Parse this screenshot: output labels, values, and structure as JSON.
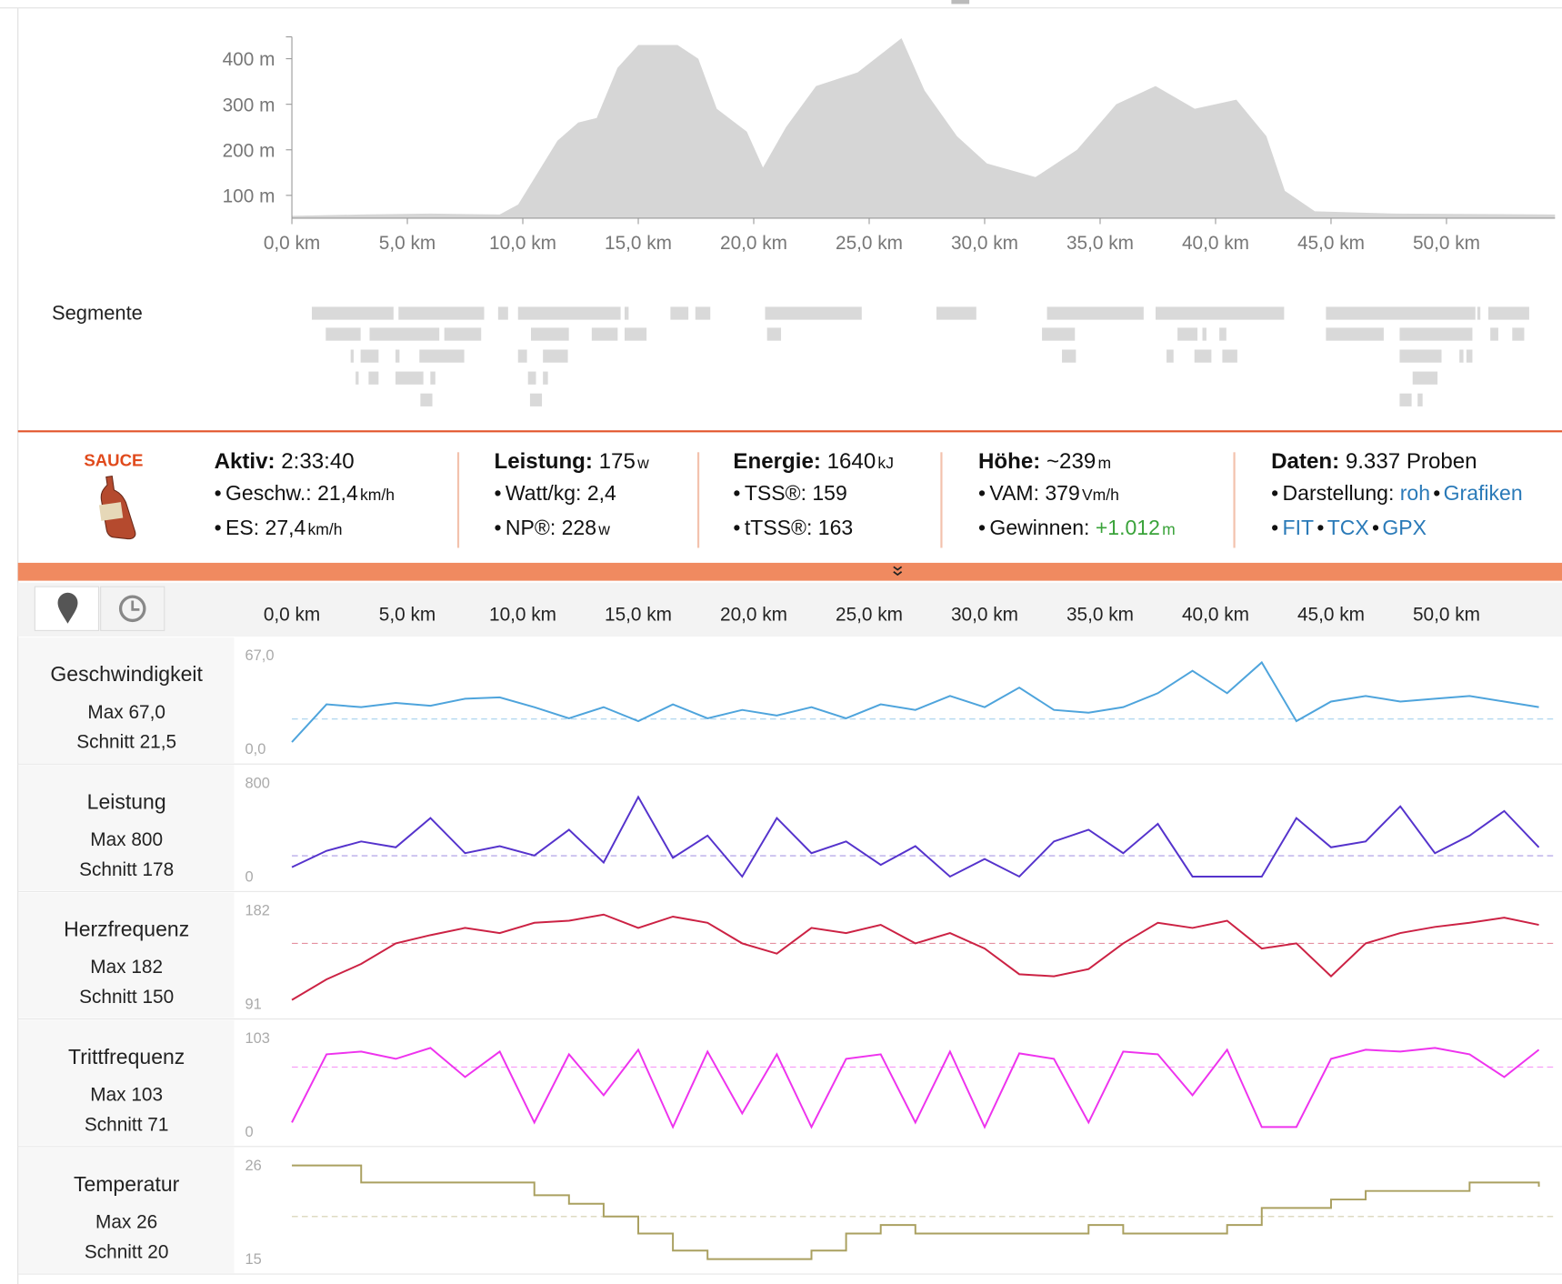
{
  "elevation": {
    "type": "area",
    "color": "#d6d6d6",
    "x": [
      0,
      3,
      6,
      9,
      9.8,
      11.5,
      12.4,
      13.2,
      14.1,
      15,
      16.7,
      17.6,
      18.4,
      19.7,
      20.4,
      21.4,
      22.7,
      24.5,
      26.4,
      27.4,
      28.8,
      30.1,
      32.2,
      34,
      35.7,
      37.4,
      39.1,
      40.9,
      42.2,
      43,
      44.3,
      47.8,
      54.7
    ],
    "values": [
      55,
      58,
      60,
      58,
      80,
      220,
      260,
      270,
      380,
      430,
      430,
      400,
      290,
      240,
      161,
      250,
      340,
      370,
      445,
      330,
      230,
      170,
      140,
      200,
      300,
      340,
      290,
      310,
      230,
      110,
      65,
      60,
      58
    ],
    "xlim": [
      0,
      54.7
    ],
    "ylim": [
      50,
      448
    ],
    "xticks": [
      {
        "value": 0,
        "label": "0,0 km"
      },
      {
        "value": 5,
        "label": "5,0 km"
      },
      {
        "value": 10,
        "label": "10,0 km"
      },
      {
        "value": 15,
        "label": "15,0 km"
      },
      {
        "value": 20,
        "label": "20,0 km"
      },
      {
        "value": 25,
        "label": "25,0 km"
      },
      {
        "value": 30,
        "label": "30,0 km"
      },
      {
        "value": 35,
        "label": "35,0 km"
      },
      {
        "value": 40,
        "label": "40,0 km"
      },
      {
        "value": 45,
        "label": "45,0 km"
      },
      {
        "value": 50,
        "label": "50,0 km"
      }
    ],
    "yticks": [
      {
        "value": 100,
        "label": "100 m"
      },
      {
        "value": 200,
        "label": "200 m"
      },
      {
        "value": 300,
        "label": "300 m"
      },
      {
        "value": 400,
        "label": "400 m"
      }
    ]
  },
  "segments_title": "Segmente",
  "summary": {
    "logo": "SAUCE",
    "columns": [
      {
        "head": {
          "label": "Aktiv:",
          "value": "2:33:40"
        },
        "items": [
          {
            "label": "Geschw.:",
            "value": "21,4",
            "unit": "km/h"
          },
          {
            "label": "ES:",
            "value": "27,4",
            "unit": "km/h"
          }
        ]
      },
      {
        "head": {
          "label": "Leistung:",
          "value": "175",
          "unit": "w"
        },
        "items": [
          {
            "label": "Watt/kg:",
            "value": "2,4"
          },
          {
            "label": "NP®:",
            "value": "228",
            "unit": "w"
          }
        ]
      },
      {
        "head": {
          "label": "Energie:",
          "value": "1640",
          "unit": "kJ"
        },
        "items": [
          {
            "label": "TSS®:",
            "value": "159"
          },
          {
            "label": "tTSS®:",
            "value": "163"
          }
        ]
      },
      {
        "head": {
          "label": "Höhe:",
          "value": "~239",
          "unit": "m"
        },
        "items": [
          {
            "label": "VAM:",
            "value": "379",
            "unit": "Vm/h"
          },
          {
            "label": "Gewinnen:",
            "value": "+1.012",
            "unit": "m",
            "color": "#3aa33a"
          }
        ]
      },
      {
        "head": {
          "label": "Daten:",
          "value": "9.337 Proben"
        },
        "items": [
          {
            "label": "Darstellung:",
            "links": [
              "roh",
              "Grafiken"
            ]
          },
          {
            "links": [
              "FIT",
              "TCX",
              "GPX"
            ]
          }
        ]
      }
    ]
  },
  "stream_axis": {
    "xlim": [
      0,
      54.7
    ],
    "xticks": [
      {
        "value": 0,
        "label": "0,0 km"
      },
      {
        "value": 5,
        "label": "5,0 km"
      },
      {
        "value": 10,
        "label": "10,0 km"
      },
      {
        "value": 15,
        "label": "15,0 km"
      },
      {
        "value": 20,
        "label": "20,0 km"
      },
      {
        "value": 25,
        "label": "25,0 km"
      },
      {
        "value": 30,
        "label": "30,0 km"
      },
      {
        "value": 35,
        "label": "35,0 km"
      },
      {
        "value": 40,
        "label": "40,0 km"
      },
      {
        "value": 45,
        "label": "45,0 km"
      },
      {
        "value": 50,
        "label": "50,0 km"
      }
    ],
    "x": [
      0,
      1.5,
      3,
      4.5,
      6,
      7.5,
      9,
      10.5,
      12,
      13.5,
      15,
      16.5,
      18,
      19.5,
      21,
      22.5,
      24,
      25.5,
      27,
      28.5,
      30,
      31.5,
      33,
      34.5,
      36,
      37.5,
      39,
      40.5,
      42,
      43.5,
      45,
      46.5,
      48,
      49.5,
      51,
      52.5,
      54
    ]
  },
  "streams": [
    {
      "type": "line",
      "name": "Geschwindigkeit",
      "max_label": "Max 67,0",
      "avg_label": "Schnitt 21,5",
      "avg": 21.5,
      "color": "#4ea4dc",
      "ylim": [
        0,
        67
      ],
      "yticks": [
        {
          "value": 0,
          "label": "0,0"
        },
        {
          "value": 67,
          "label": "67,0"
        }
      ],
      "values": [
        5,
        32,
        30,
        33,
        31,
        36,
        37,
        30,
        22,
        30,
        20,
        32,
        22,
        28,
        24,
        30,
        22,
        32,
        28,
        38,
        30,
        44,
        28,
        26,
        30,
        40,
        56,
        40,
        62,
        20,
        34,
        38,
        34,
        36,
        38,
        34,
        30
      ]
    },
    {
      "type": "line",
      "name": "Leistung",
      "max_label": "Max 800",
      "avg_label": "Schnitt 178",
      "avg": 178,
      "color": "#5533cc",
      "ylim": [
        0,
        800
      ],
      "yticks": [
        0,
        800
      ],
      "values": [
        80,
        220,
        300,
        250,
        500,
        200,
        260,
        180,
        400,
        120,
        680,
        160,
        350,
        0,
        500,
        200,
        300,
        100,
        260,
        0,
        150,
        0,
        300,
        400,
        200,
        450,
        0,
        0,
        0,
        500,
        250,
        300,
        600,
        200,
        350,
        560,
        250
      ]
    },
    {
      "type": "line",
      "name": "Herzfrequenz",
      "max_label": "Max 182",
      "avg_label": "Schnitt 150",
      "avg": 150,
      "color": "#cc2244",
      "ylim": [
        91,
        182
      ],
      "yticks": [
        91,
        182
      ],
      "values": [
        95,
        115,
        130,
        150,
        158,
        165,
        160,
        170,
        172,
        178,
        165,
        176,
        170,
        150,
        140,
        165,
        160,
        168,
        150,
        160,
        145,
        120,
        118,
        125,
        150,
        170,
        165,
        172,
        145,
        150,
        118,
        150,
        160,
        166,
        170,
        175,
        168
      ]
    },
    {
      "type": "line",
      "name": "Trittfrequenz",
      "max_label": "Max 103",
      "avg_label": "Schnitt 71",
      "avg": 71,
      "color": "#ee33ee",
      "ylim": [
        0,
        103
      ],
      "yticks": [
        0,
        103
      ],
      "values": [
        10,
        85,
        88,
        80,
        92,
        60,
        88,
        10,
        85,
        40,
        90,
        5,
        88,
        20,
        85,
        5,
        80,
        85,
        10,
        88,
        5,
        86,
        80,
        10,
        88,
        85,
        40,
        90,
        5,
        5,
        80,
        90,
        88,
        92,
        85,
        60,
        90
      ]
    },
    {
      "type": "step",
      "name": "Temperatur",
      "max_label": "Max 26",
      "avg_label": "Schnitt 20",
      "avg": 20,
      "color": "#aaa060",
      "ylim": [
        15,
        26
      ],
      "yticks": [
        15,
        26
      ],
      "values": [
        26,
        26,
        24,
        24,
        24,
        24,
        24,
        22.5,
        21.5,
        20,
        18,
        16,
        15,
        15,
        15,
        16,
        18,
        19,
        18,
        18,
        18,
        18,
        18,
        19,
        18,
        18,
        18,
        19,
        21,
        21,
        22,
        23,
        23,
        23,
        24,
        24,
        23.5
      ]
    }
  ]
}
